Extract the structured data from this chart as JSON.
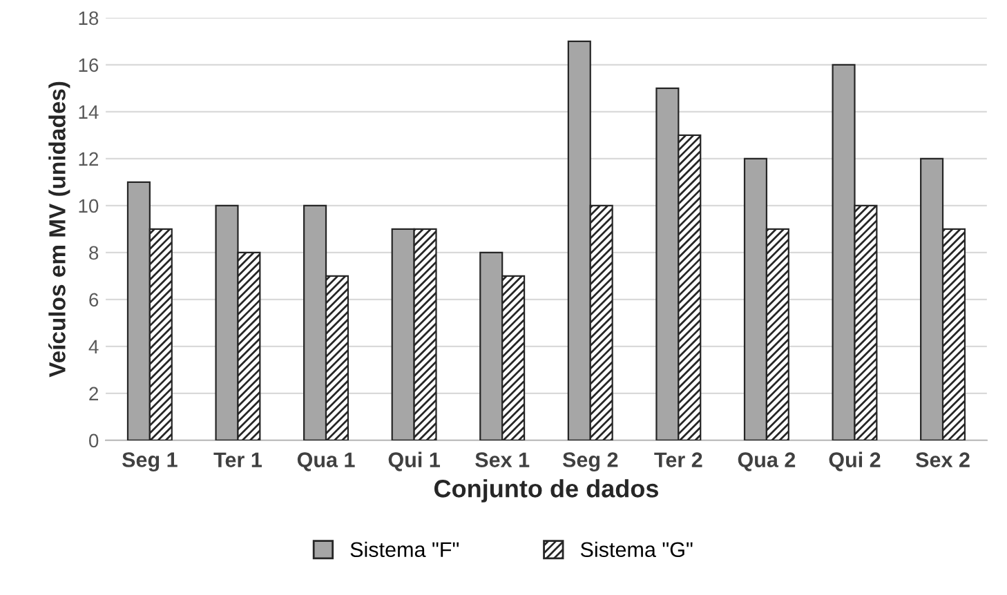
{
  "chart_data": {
    "type": "bar",
    "xlabel": "Conjunto de dados",
    "ylabel": "Veículos em MV (unidades)",
    "categories": [
      "Seg 1",
      "Ter 1",
      "Qua 1",
      "Qui 1",
      "Sex 1",
      "Seg 2",
      "Ter 2",
      "Qua 2",
      "Qui 2",
      "Sex 2"
    ],
    "series": [
      {
        "name": "Sistema \"F\"",
        "color": "#a6a6a6",
        "values": [
          11,
          10,
          10,
          9,
          8,
          17,
          15,
          12,
          16,
          12
        ]
      },
      {
        "name": "Sistema \"G\"",
        "color": "#262626",
        "values": [
          9,
          8,
          7,
          9,
          7,
          10,
          13,
          9,
          10,
          9
        ]
      }
    ],
    "ylim": [
      0,
      18
    ],
    "yticks": [
      0,
      2,
      4,
      6,
      8,
      10,
      12,
      14,
      16,
      18
    ],
    "grid": "y",
    "legend": "bottom"
  }
}
